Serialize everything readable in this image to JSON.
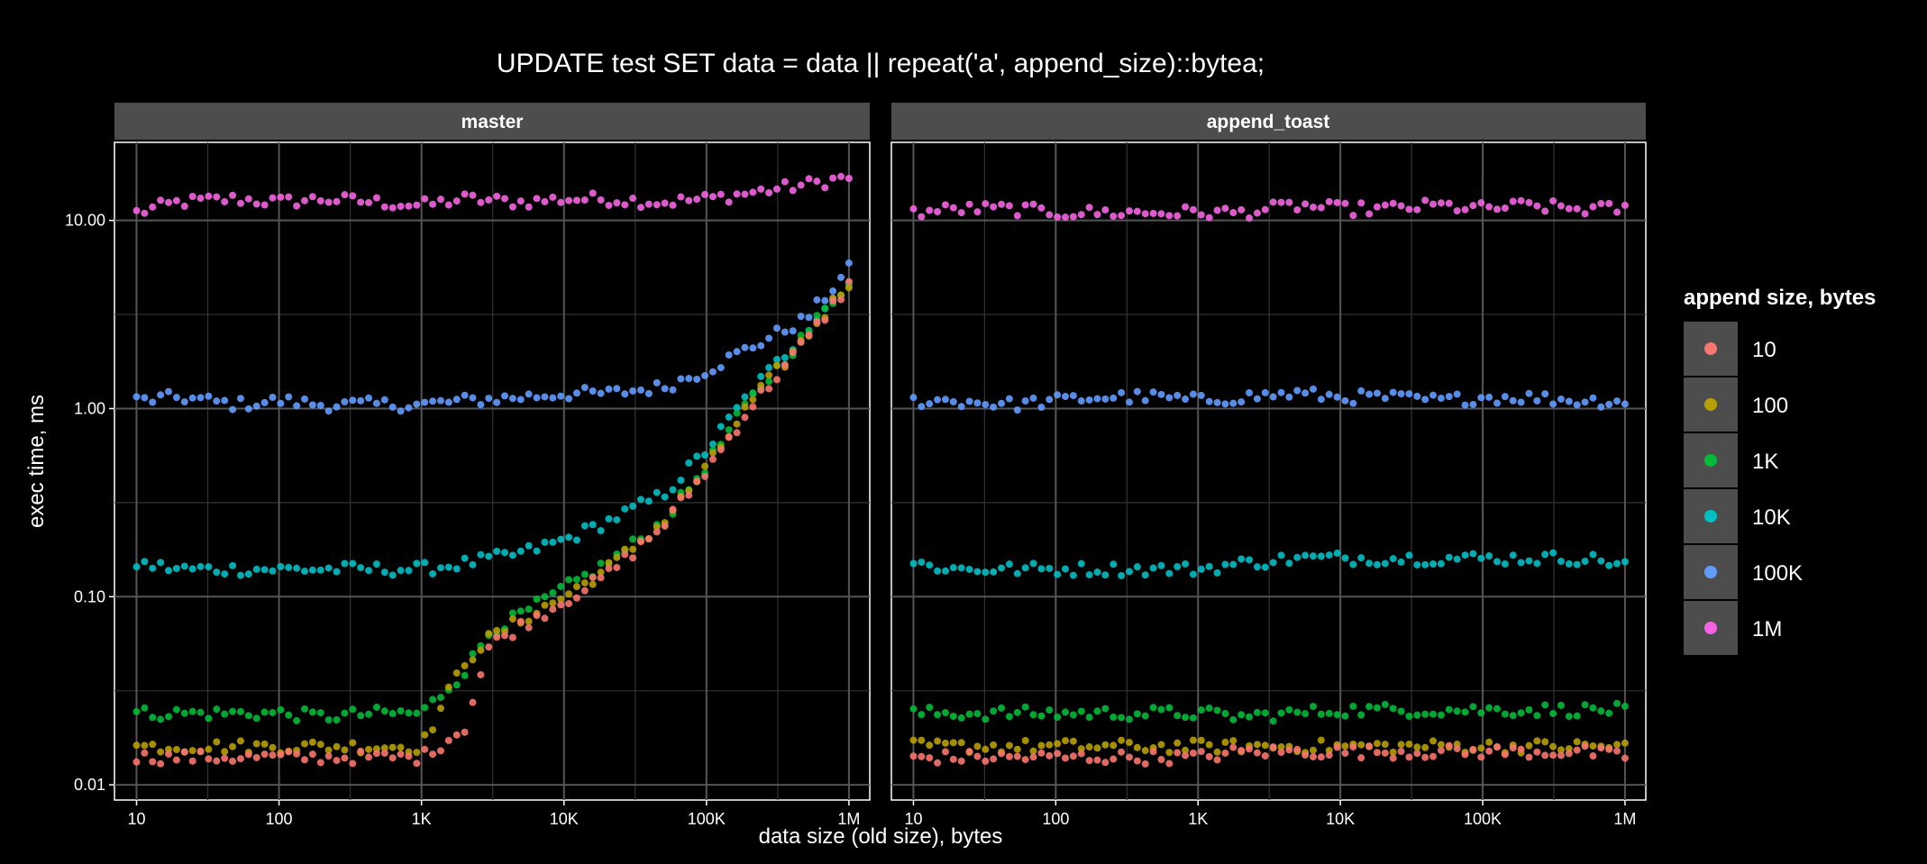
{
  "chart_data": {
    "type": "scatter",
    "title": "UPDATE test SET data = data || repeat('a', append_size)::bytea;",
    "xlabel": "data size (old size), bytes",
    "ylabel": "exec time, ms",
    "x_scale": "log10",
    "y_scale": "log10",
    "xlim": [
      7,
      1400000
    ],
    "ylim": [
      0.0083,
      26
    ],
    "x_ticks": [
      {
        "value": 10,
        "label": "10"
      },
      {
        "value": 100,
        "label": "100"
      },
      {
        "value": 1000,
        "label": "1K"
      },
      {
        "value": 10000,
        "label": "10K"
      },
      {
        "value": 100000,
        "label": "100K"
      },
      {
        "value": 1000000,
        "label": "1M"
      }
    ],
    "y_ticks": [
      {
        "value": 0.01,
        "label": "0.01"
      },
      {
        "value": 0.1,
        "label": "0.10"
      },
      {
        "value": 1,
        "label": "1.00"
      },
      {
        "value": 10,
        "label": "10.00"
      }
    ],
    "grid": true,
    "legend": {
      "title": "append size, bytes",
      "position": "right",
      "entries": [
        {
          "label": "10",
          "color": "#F8766D"
        },
        {
          "label": "100",
          "color": "#B79F00"
        },
        {
          "label": "1K",
          "color": "#00BA38"
        },
        {
          "label": "10K",
          "color": "#00BFC4"
        },
        {
          "label": "100K",
          "color": "#619CFF"
        },
        {
          "label": "1M",
          "color": "#F564E3"
        }
      ]
    },
    "facets": [
      {
        "label": "master",
        "series": [
          {
            "name": "1M",
            "points": [
              [
                10,
                11
              ],
              [
                20,
                12.5
              ],
              [
                50,
                13
              ],
              [
                100,
                12.5
              ],
              [
                200,
                13
              ],
              [
                500,
                12.5
              ],
              [
                1000,
                12
              ],
              [
                2000,
                13
              ],
              [
                5000,
                12.5
              ],
              [
                10000,
                13
              ],
              [
                20000,
                13
              ],
              [
                50000,
                12.5
              ],
              [
                100000,
                13
              ],
              [
                200000,
                14
              ],
              [
                500000,
                15.5
              ],
              [
                1000000,
                17
              ]
            ]
          },
          {
            "name": "100K",
            "points": [
              [
                10,
                1.1
              ],
              [
                20,
                1.15
              ],
              [
                50,
                1.05
              ],
              [
                100,
                1.1
              ],
              [
                200,
                1.05
              ],
              [
                500,
                1.05
              ],
              [
                1000,
                1.05
              ],
              [
                2000,
                1.1
              ],
              [
                5000,
                1.15
              ],
              [
                10000,
                1.2
              ],
              [
                20000,
                1.2
              ],
              [
                50000,
                1.3
              ],
              [
                100000,
                1.6
              ],
              [
                200000,
                2.1
              ],
              [
                500000,
                3
              ],
              [
                1000000,
                5.5
              ]
            ]
          },
          {
            "name": "10K",
            "points": [
              [
                10,
                0.15
              ],
              [
                20,
                0.14
              ],
              [
                50,
                0.14
              ],
              [
                100,
                0.14
              ],
              [
                200,
                0.14
              ],
              [
                500,
                0.14
              ],
              [
                1000,
                0.14
              ],
              [
                2000,
                0.15
              ],
              [
                5000,
                0.17
              ],
              [
                10000,
                0.2
              ],
              [
                20000,
                0.25
              ],
              [
                50000,
                0.35
              ],
              [
                100000,
                0.6
              ],
              [
                200000,
                1.2
              ],
              [
                500000,
                2.6
              ],
              [
                1000000,
                4.8
              ]
            ]
          },
          {
            "name": "1K",
            "points": [
              [
                10,
                0.024
              ],
              [
                20,
                0.024
              ],
              [
                50,
                0.024
              ],
              [
                100,
                0.024
              ],
              [
                200,
                0.023
              ],
              [
                500,
                0.024
              ],
              [
                1000,
                0.024
              ],
              [
                2000,
                0.04
              ],
              [
                3000,
                0.065
              ],
              [
                5000,
                0.08
              ],
              [
                10000,
                0.11
              ],
              [
                20000,
                0.15
              ],
              [
                50000,
                0.25
              ],
              [
                100000,
                0.5
              ],
              [
                200000,
                1.1
              ],
              [
                500000,
                2.5
              ],
              [
                1000000,
                4.8
              ]
            ]
          },
          {
            "name": "100",
            "points": [
              [
                10,
                0.016
              ],
              [
                20,
                0.016
              ],
              [
                50,
                0.016
              ],
              [
                100,
                0.016
              ],
              [
                200,
                0.016
              ],
              [
                500,
                0.016
              ],
              [
                1000,
                0.016
              ],
              [
                2000,
                0.045
              ],
              [
                3000,
                0.06
              ],
              [
                5000,
                0.075
              ],
              [
                10000,
                0.1
              ],
              [
                20000,
                0.14
              ],
              [
                50000,
                0.25
              ],
              [
                100000,
                0.48
              ],
              [
                200000,
                1.05
              ],
              [
                500000,
                2.4
              ],
              [
                1000000,
                4.7
              ]
            ]
          },
          {
            "name": "10",
            "points": [
              [
                10,
                0.014
              ],
              [
                20,
                0.014
              ],
              [
                50,
                0.014
              ],
              [
                100,
                0.014
              ],
              [
                200,
                0.014
              ],
              [
                500,
                0.014
              ],
              [
                1000,
                0.014
              ],
              [
                2000,
                0.02
              ],
              [
                3000,
                0.055
              ],
              [
                5000,
                0.07
              ],
              [
                10000,
                0.095
              ],
              [
                20000,
                0.13
              ],
              [
                50000,
                0.24
              ],
              [
                100000,
                0.47
              ],
              [
                200000,
                1
              ],
              [
                500000,
                2.3
              ],
              [
                1000000,
                4.6
              ]
            ]
          }
        ]
      },
      {
        "label": "append_toast",
        "series": [
          {
            "name": "1M",
            "points": [
              [
                10,
                11
              ],
              [
                20,
                11.5
              ],
              [
                50,
                11.5
              ],
              [
                100,
                11
              ],
              [
                200,
                11
              ],
              [
                500,
                11
              ],
              [
                1000,
                11
              ],
              [
                2000,
                11
              ],
              [
                5000,
                12
              ],
              [
                10000,
                11.5
              ],
              [
                20000,
                11.5
              ],
              [
                50000,
                12
              ],
              [
                100000,
                11.5
              ],
              [
                200000,
                12
              ],
              [
                500000,
                11.5
              ],
              [
                1000000,
                11.5
              ]
            ]
          },
          {
            "name": "100K",
            "points": [
              [
                10,
                1.1
              ],
              [
                20,
                1.1
              ],
              [
                50,
                1.05
              ],
              [
                100,
                1.1
              ],
              [
                200,
                1.15
              ],
              [
                500,
                1.15
              ],
              [
                1000,
                1.1
              ],
              [
                2000,
                1.15
              ],
              [
                5000,
                1.2
              ],
              [
                10000,
                1.15
              ],
              [
                20000,
                1.15
              ],
              [
                50000,
                1.1
              ],
              [
                100000,
                1.15
              ],
              [
                200000,
                1.15
              ],
              [
                500000,
                1.1
              ],
              [
                1000000,
                1.1
              ]
            ]
          },
          {
            "name": "10K",
            "points": [
              [
                10,
                0.15
              ],
              [
                20,
                0.14
              ],
              [
                50,
                0.14
              ],
              [
                100,
                0.14
              ],
              [
                200,
                0.14
              ],
              [
                500,
                0.14
              ],
              [
                1000,
                0.14
              ],
              [
                2000,
                0.15
              ],
              [
                5000,
                0.16
              ],
              [
                10000,
                0.16
              ],
              [
                20000,
                0.16
              ],
              [
                50000,
                0.16
              ],
              [
                100000,
                0.16
              ],
              [
                200000,
                0.16
              ],
              [
                500000,
                0.16
              ],
              [
                1000000,
                0.15
              ]
            ]
          },
          {
            "name": "1K",
            "points": [
              [
                10,
                0.024
              ],
              [
                20,
                0.024
              ],
              [
                50,
                0.024
              ],
              [
                100,
                0.024
              ],
              [
                200,
                0.024
              ],
              [
                500,
                0.024
              ],
              [
                1000,
                0.024
              ],
              [
                2000,
                0.023
              ],
              [
                5000,
                0.024
              ],
              [
                10000,
                0.025
              ],
              [
                20000,
                0.025
              ],
              [
                50000,
                0.025
              ],
              [
                100000,
                0.025
              ],
              [
                200000,
                0.025
              ],
              [
                500000,
                0.025
              ],
              [
                1000000,
                0.025
              ]
            ]
          },
          {
            "name": "100",
            "points": [
              [
                10,
                0.016
              ],
              [
                20,
                0.016
              ],
              [
                50,
                0.016
              ],
              [
                100,
                0.016
              ],
              [
                200,
                0.016
              ],
              [
                500,
                0.016
              ],
              [
                1000,
                0.016
              ],
              [
                2000,
                0.016
              ],
              [
                5000,
                0.016
              ],
              [
                10000,
                0.016
              ],
              [
                20000,
                0.016
              ],
              [
                50000,
                0.016
              ],
              [
                100000,
                0.016
              ],
              [
                200000,
                0.016
              ],
              [
                500000,
                0.016
              ],
              [
                1000000,
                0.016
              ]
            ]
          },
          {
            "name": "10",
            "points": [
              [
                10,
                0.014
              ],
              [
                20,
                0.014
              ],
              [
                50,
                0.014
              ],
              [
                100,
                0.014
              ],
              [
                200,
                0.014
              ],
              [
                500,
                0.014
              ],
              [
                1000,
                0.014
              ],
              [
                2000,
                0.015
              ],
              [
                5000,
                0.015
              ],
              [
                10000,
                0.015
              ],
              [
                20000,
                0.015
              ],
              [
                50000,
                0.015
              ],
              [
                100000,
                0.015
              ],
              [
                200000,
                0.015
              ],
              [
                500000,
                0.015
              ],
              [
                1000000,
                0.014
              ]
            ]
          }
        ]
      }
    ]
  }
}
